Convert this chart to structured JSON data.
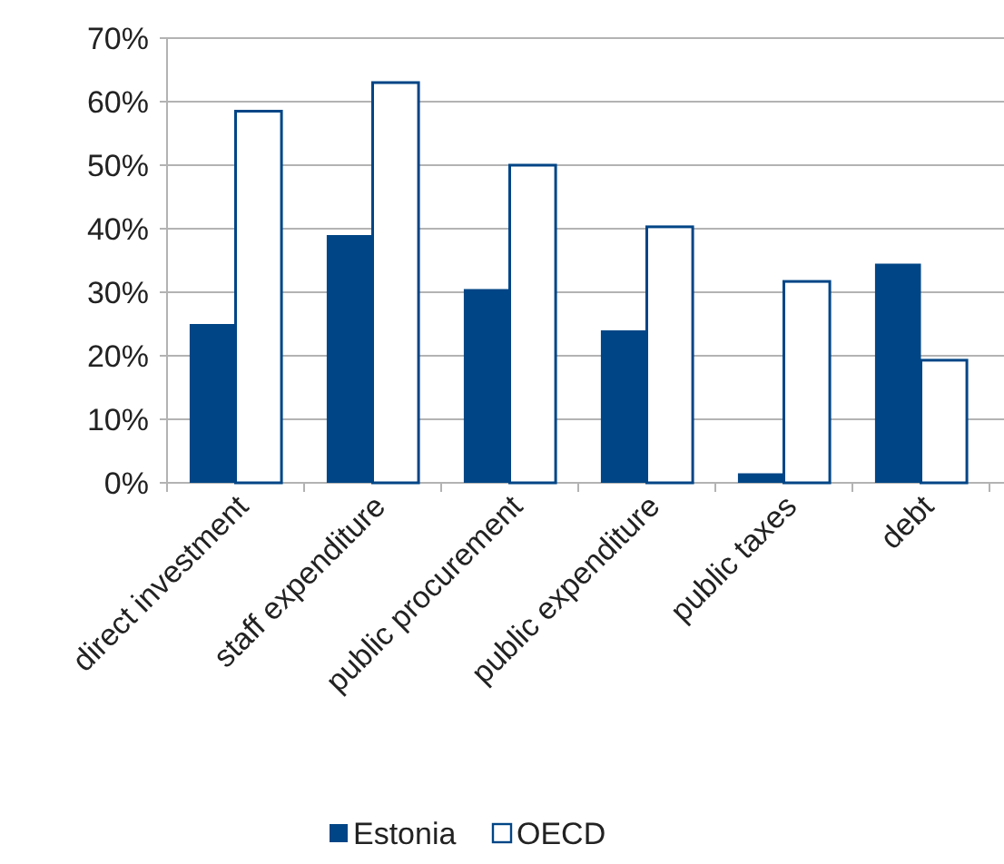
{
  "chart_data": {
    "type": "bar",
    "categories": [
      "direct investment",
      "staff expenditure",
      "public procurement",
      "public expenditure",
      "public taxes",
      "debt"
    ],
    "series": [
      {
        "name": "Estonia",
        "color": "#004586",
        "values": [
          25,
          39,
          30.5,
          24,
          1.5,
          34.5
        ]
      },
      {
        "name": "OECD",
        "color": "#ffffff",
        "values": [
          58.5,
          63,
          50,
          40.3,
          31.7,
          19.3
        ]
      }
    ],
    "ylim": [
      0,
      70
    ],
    "yticks": [
      {
        "value": 0,
        "label": "0%"
      },
      {
        "value": 10,
        "label": "10%"
      },
      {
        "value": 20,
        "label": "20%"
      },
      {
        "value": 30,
        "label": "30%"
      },
      {
        "value": 40,
        "label": "40%"
      },
      {
        "value": 50,
        "label": "50%"
      },
      {
        "value": 60,
        "label": "60%"
      },
      {
        "value": 70,
        "label": "70%"
      }
    ],
    "grid": "y",
    "legend": "bottom"
  }
}
